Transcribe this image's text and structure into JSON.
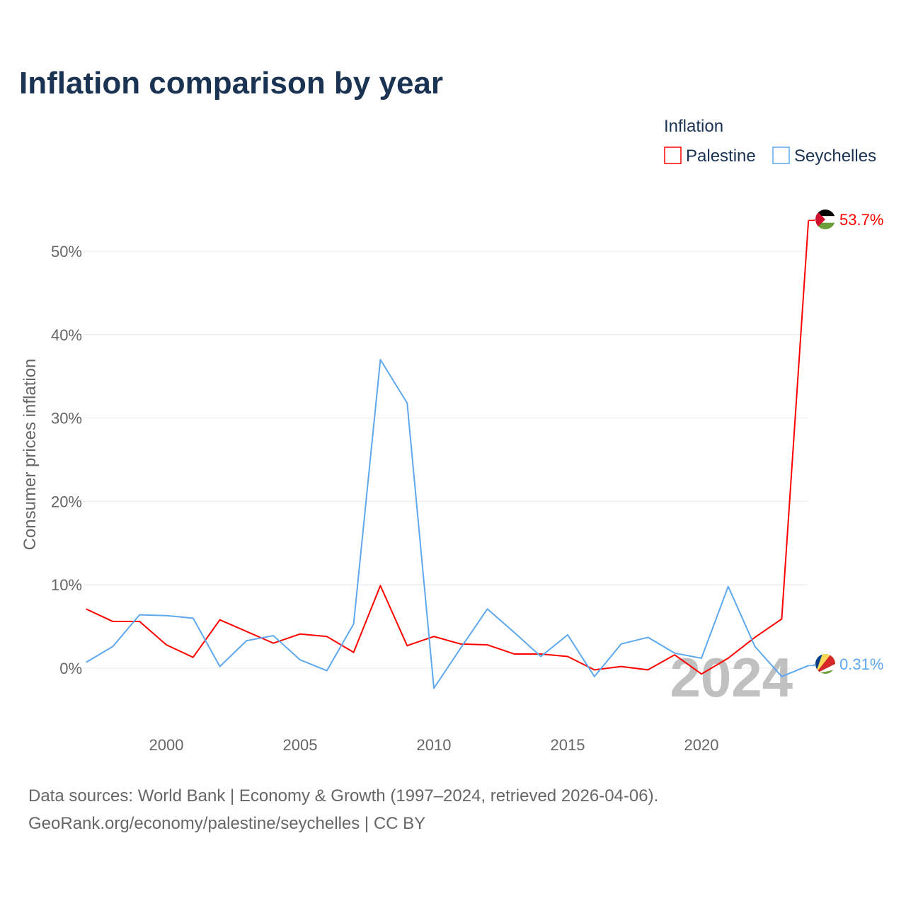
{
  "chart_data": {
    "type": "line",
    "title": "Inflation comparison by year",
    "ylabel": "Consumer prices inflation",
    "xlabel": "",
    "legend_title": "Inflation",
    "legend_placement": "top-right",
    "ylim": [
      -5,
      58
    ],
    "xlim": [
      1997,
      2024
    ],
    "yticks": [
      0,
      10,
      20,
      30,
      40,
      50
    ],
    "ytick_labels": [
      "0%",
      "10%",
      "20%",
      "30%",
      "40%",
      "50%"
    ],
    "xticks": [
      2000,
      2005,
      2010,
      2015,
      2020
    ],
    "xtick_labels": [
      "2000",
      "2005",
      "2010",
      "2015",
      "2020"
    ],
    "grid": true,
    "year_watermark": "2024",
    "x": [
      1997,
      1998,
      1999,
      2000,
      2001,
      2002,
      2003,
      2004,
      2005,
      2006,
      2007,
      2008,
      2009,
      2010,
      2011,
      2012,
      2013,
      2014,
      2015,
      2016,
      2017,
      2018,
      2019,
      2020,
      2021,
      2022,
      2023,
      2024
    ],
    "series": [
      {
        "name": "Palestine",
        "color": "#ff0000",
        "end_label": "53.7%",
        "values": [
          7.1,
          5.6,
          5.6,
          2.8,
          1.3,
          5.8,
          4.4,
          3.0,
          4.1,
          3.8,
          1.9,
          9.9,
          2.7,
          3.8,
          2.9,
          2.8,
          1.7,
          1.7,
          1.4,
          -0.2,
          0.2,
          -0.2,
          1.6,
          -0.7,
          1.2,
          3.7,
          5.9,
          53.7
        ]
      },
      {
        "name": "Seychelles",
        "color": "#5ea8ee",
        "end_label": "0.31%",
        "values": [
          0.7,
          2.6,
          6.4,
          6.3,
          6.0,
          0.2,
          3.3,
          3.9,
          1.0,
          -0.3,
          5.3,
          37.0,
          31.8,
          -2.4,
          2.4,
          7.1,
          4.3,
          1.4,
          4.0,
          -1.0,
          2.9,
          3.7,
          1.8,
          1.2,
          9.8,
          2.6,
          -1.0,
          0.31
        ]
      }
    ]
  },
  "footer": {
    "line1": "Data sources: World Bank | Economy & Growth (1997–2024, retrieved 2026-04-06).",
    "line2": "GeoRank.org/economy/palestine/seychelles | CC BY"
  }
}
